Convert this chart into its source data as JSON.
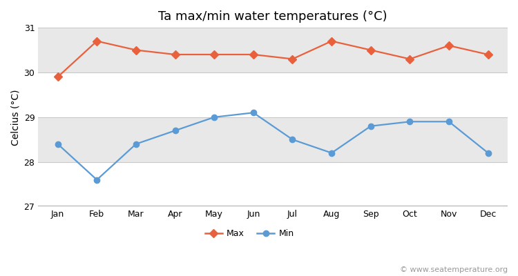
{
  "months": [
    "Jan",
    "Feb",
    "Mar",
    "Apr",
    "May",
    "Jun",
    "Jul",
    "Aug",
    "Sep",
    "Oct",
    "Nov",
    "Dec"
  ],
  "max_temps": [
    29.9,
    30.7,
    30.5,
    30.4,
    30.4,
    30.4,
    30.3,
    30.7,
    30.5,
    30.3,
    30.6,
    30.4
  ],
  "min_temps": [
    28.4,
    27.6,
    28.4,
    28.7,
    29.0,
    29.1,
    28.5,
    28.2,
    28.8,
    28.9,
    28.9,
    28.2
  ],
  "title": "Ta max/min water temperatures (°C)",
  "ylabel": "Celcius (°C)",
  "ylim": [
    27,
    31
  ],
  "yticks": [
    27,
    28,
    29,
    30,
    31
  ],
  "max_color": "#e8603c",
  "min_color": "#5b9bd5",
  "bg_color": "#ffffff",
  "plot_bg_white": "#ffffff",
  "plot_bg_gray": "#e8e8e8",
  "grid_color": "#c8c8c8",
  "watermark": "© www.seatemperature.org",
  "legend_max": "Max",
  "legend_min": "Min",
  "title_fontsize": 13,
  "axis_fontsize": 10,
  "tick_fontsize": 9,
  "watermark_fontsize": 8
}
